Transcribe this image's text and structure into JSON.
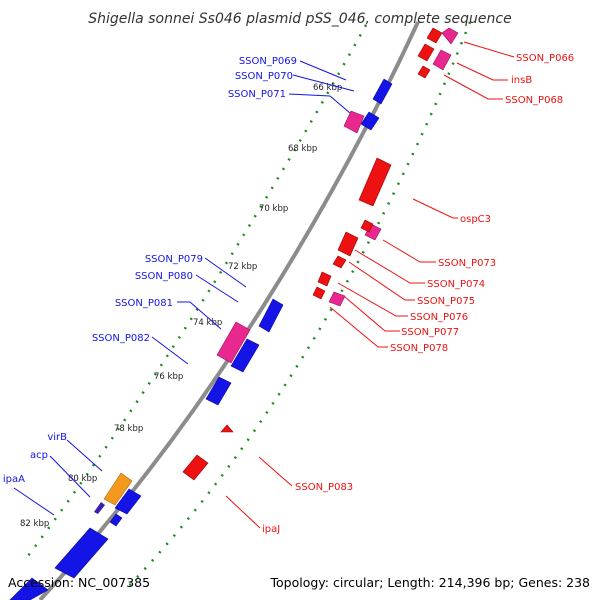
{
  "title": "Shigella sonnei Ss046 plasmid pSS_046, complete sequence",
  "accession": "Accession: NC_007385",
  "topology": "Topology: circular; Length: 214,396 bp; Genes: 238",
  "colors": {
    "forward_gene": "#1414e6",
    "reverse_gene": "#ee1111",
    "pseudo_gene": "#e8288e",
    "other_gene": "#f39a1e",
    "backbone": "#8c8c8c",
    "tick": "#1e8a1e"
  },
  "scale_labels": [
    "66 kbp",
    "68 kbp",
    "70 kbp",
    "72 kbp",
    "74 kbp",
    "76 kbp",
    "78 kbp",
    "80 kbp",
    "82 kbp"
  ],
  "gene_labels_left": [
    "SSON_P069",
    "SSON_P070",
    "SSON_P071",
    "SSON_P079",
    "SSON_P080",
    "SSON_P081",
    "SSON_P082",
    "virB",
    "acp",
    "ipaA"
  ],
  "gene_labels_right": [
    "SSON_P066",
    "insB",
    "SSON_P068",
    "ospC3",
    "SSON_P073",
    "SSON_P074",
    "SSON_P075",
    "SSON_P076",
    "SSON_P077",
    "SSON_P078",
    "SSON_P083",
    "ipaJ"
  ]
}
